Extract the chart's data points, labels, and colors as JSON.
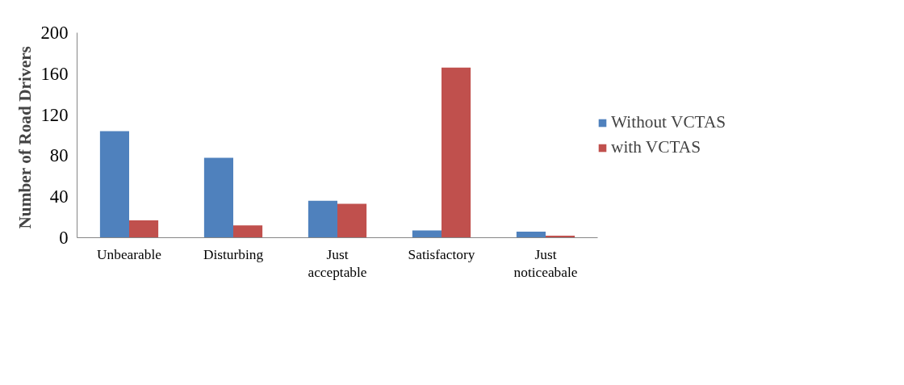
{
  "chart_data": {
    "type": "bar",
    "ylabel": "Number of  Road Drivers",
    "categories": [
      "Unbearable",
      "Disturbing",
      "Just\nacceptable",
      "Satisfactory",
      "Just\nnoticeabale"
    ],
    "series": [
      {
        "name": "Without VCTAS",
        "color": "#4f81bd",
        "values": [
          104,
          78,
          36,
          7,
          6
        ]
      },
      {
        "name": "with VCTAS",
        "color": "#c0504d",
        "values": [
          17,
          12,
          33,
          166,
          2
        ]
      }
    ],
    "ylim": [
      0,
      200
    ],
    "yticks": [
      0,
      40,
      80,
      120,
      160,
      200
    ],
    "grid": false,
    "legend": "right"
  }
}
